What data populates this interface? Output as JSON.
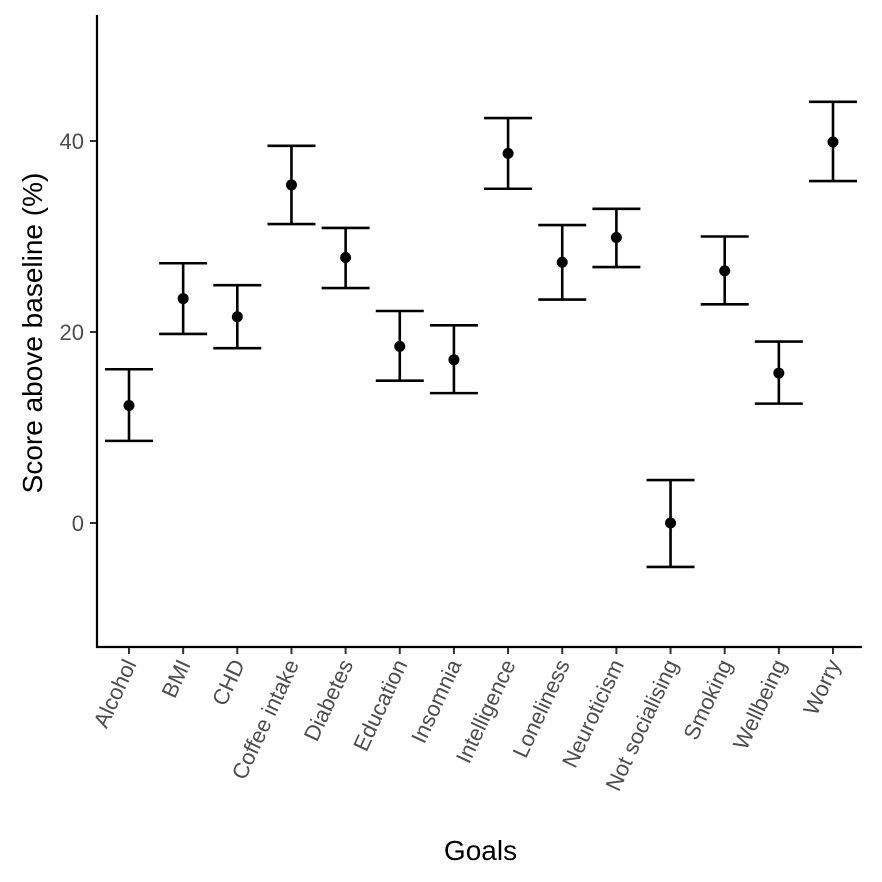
{
  "chart_data": {
    "type": "scatter",
    "title": "",
    "xlabel": "Goals",
    "ylabel": "Score above baseline (%)",
    "ylim": [
      -13,
      53
    ],
    "yticks": [
      0,
      20,
      40
    ],
    "grid": false,
    "legend": "none",
    "categories": [
      "Alcohol",
      "BMI",
      "CHD",
      "Coffee intake",
      "Diabetes",
      "Education",
      "Insomnia",
      "Intelligence",
      "Loneliness",
      "Neuroticism",
      "Not socialising",
      "Smoking",
      "Wellbeing",
      "Worry"
    ],
    "values": [
      12.3,
      23.5,
      21.6,
      35.4,
      27.8,
      18.5,
      17.1,
      38.7,
      27.3,
      29.9,
      0.0,
      26.4,
      15.7,
      39.9
    ],
    "lower": [
      8.6,
      19.8,
      18.3,
      31.3,
      24.6,
      14.9,
      13.6,
      35.0,
      23.4,
      26.8,
      -4.6,
      22.9,
      12.5,
      35.8
    ],
    "upper": [
      16.1,
      27.2,
      24.9,
      39.5,
      30.9,
      22.2,
      20.7,
      42.4,
      31.2,
      32.9,
      4.5,
      30.0,
      19.0,
      44.1
    ],
    "colors": {
      "marks": "#000000",
      "axis": "#000000",
      "tick_text": "#4d4d4d"
    }
  }
}
